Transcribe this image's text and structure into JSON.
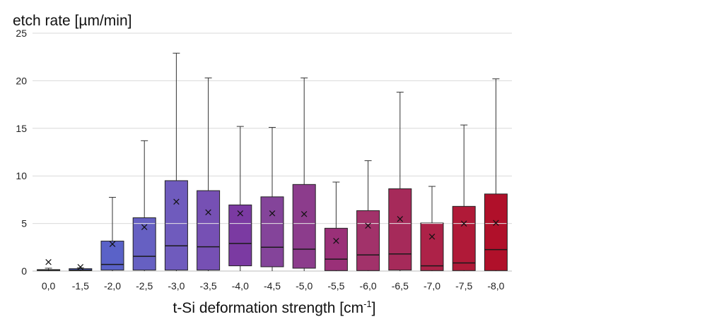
{
  "chart_data": {
    "type": "box",
    "ylabel": "etch rate [µm/min]",
    "xlabel": "t-Si deformation strength [cm",
    "xlabel_superscript": "-1",
    "xlabel_close": "]",
    "ylim": [
      0,
      25
    ],
    "yticks": [
      "0",
      "5",
      "10",
      "15",
      "20",
      "25"
    ],
    "grid": "horizontal",
    "categories": [
      "0,0",
      "-1,5",
      "-2,0",
      "-2,5",
      "-3,0",
      "-3,5",
      "-4,0",
      "-4,5",
      "-5,0",
      "-5,5",
      "-6,0",
      "-6,5",
      "-7,0",
      "-7,5",
      "-8,0"
    ],
    "colors": [
      "#5565c8",
      "#5262c8",
      "#5a62c8",
      "#6660c2",
      "#6f5bbd",
      "#7650b4",
      "#7b3aa2",
      "#84449a",
      "#8c3c8c",
      "#9a3078",
      "#a2326a",
      "#a62a5a",
      "#ad2248",
      "#b01a38",
      "#b0102a"
    ],
    "boxes": [
      {
        "min": 0,
        "q1": 0.05,
        "median": 0.1,
        "q3": 0.15,
        "max": 0.3,
        "mean": 0.95
      },
      {
        "min": 0,
        "q1": 0.05,
        "median": 0.1,
        "q3": 0.25,
        "max": 0.35,
        "mean": 0.45
      },
      {
        "min": 0,
        "q1": 0.1,
        "median": 0.7,
        "q3": 3.15,
        "max": 7.75,
        "mean": 2.85
      },
      {
        "min": 0,
        "q1": 0.1,
        "median": 1.55,
        "q3": 5.6,
        "max": 13.7,
        "mean": 4.65
      },
      {
        "min": 0,
        "q1": 0.1,
        "median": 2.65,
        "q3": 9.5,
        "max": 22.9,
        "mean": 7.3
      },
      {
        "min": 0,
        "q1": 0.1,
        "median": 2.55,
        "q3": 8.45,
        "max": 20.3,
        "mean": 6.2
      },
      {
        "min": 0,
        "q1": 0.55,
        "median": 2.9,
        "q3": 6.95,
        "max": 15.2,
        "mean": 6.1
      },
      {
        "min": 0,
        "q1": 0.45,
        "median": 2.5,
        "q3": 7.8,
        "max": 15.1,
        "mean": 6.1
      },
      {
        "min": 0,
        "q1": 0.3,
        "median": 2.3,
        "q3": 9.1,
        "max": 20.3,
        "mean": 6.0
      },
      {
        "min": 0,
        "q1": 0.05,
        "median": 1.25,
        "q3": 4.5,
        "max": 9.35,
        "mean": 3.2
      },
      {
        "min": 0,
        "q1": 0.05,
        "median": 1.7,
        "q3": 6.35,
        "max": 11.6,
        "mean": 4.8
      },
      {
        "min": 0,
        "q1": 0.1,
        "median": 1.8,
        "q3": 8.65,
        "max": 18.8,
        "mean": 5.5
      },
      {
        "min": 0,
        "q1": 0.05,
        "median": 0.55,
        "q3": 5.05,
        "max": 8.9,
        "mean": 3.65
      },
      {
        "min": 0,
        "q1": 0.05,
        "median": 0.85,
        "q3": 6.8,
        "max": 15.35,
        "mean": 5.0
      },
      {
        "min": 0,
        "q1": 0.05,
        "median": 2.25,
        "q3": 8.1,
        "max": 20.2,
        "mean": 5.1
      }
    ],
    "mean_marker": "×"
  }
}
